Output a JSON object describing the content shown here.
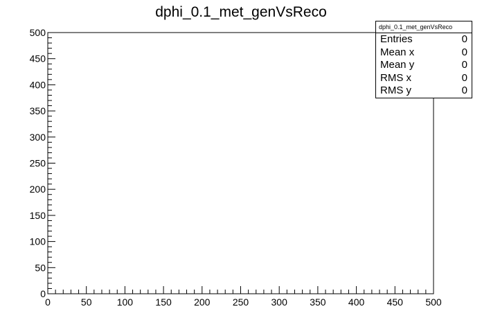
{
  "title": "dphi_0.1_met_genVsReco",
  "stats": {
    "name": "dphi_0.1_met_genVsReco",
    "rows": [
      {
        "label": "Entries",
        "value": "0"
      },
      {
        "label": "Mean x",
        "value": "0"
      },
      {
        "label": "Mean y",
        "value": "0"
      },
      {
        "label": "RMS x",
        "value": "0"
      },
      {
        "label": "RMS y",
        "value": "0"
      }
    ]
  },
  "chart_data": {
    "type": "heatmap",
    "title": "dphi_0.1_met_genVsReco",
    "xlabel": "",
    "ylabel": "",
    "xlim": [
      0,
      500
    ],
    "ylim": [
      0,
      500
    ],
    "x_ticks": [
      0,
      50,
      100,
      150,
      200,
      250,
      300,
      350,
      400,
      450,
      500
    ],
    "y_ticks": [
      0,
      50,
      100,
      150,
      200,
      250,
      300,
      350,
      400,
      450,
      500
    ],
    "grid": false,
    "entries": 0,
    "values": []
  }
}
